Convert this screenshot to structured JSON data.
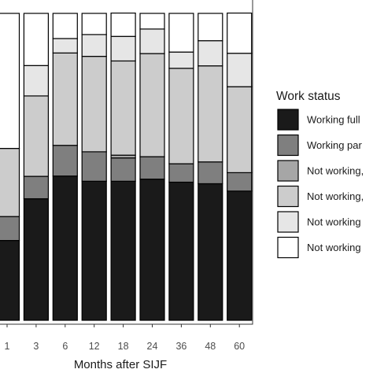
{
  "chart_data": {
    "type": "bar",
    "stacked": true,
    "xlabel": "Months after SIJF",
    "ylabel": "",
    "title": "",
    "ylim": [
      0,
      1
    ],
    "categories": [
      "1",
      "3",
      "6",
      "12",
      "18",
      "24",
      "36",
      "48",
      "60"
    ],
    "legend": {
      "title": "Work status",
      "placement": "right"
    },
    "series": [
      {
        "name": "Working full",
        "color": "#1a1a1a",
        "values": [
          0.26,
          0.396,
          0.47,
          0.453,
          0.453,
          0.46,
          0.45,
          0.445,
          0.421
        ]
      },
      {
        "name": "Working par",
        "color": "#7f7f7f",
        "values": [
          0.078,
          0.073,
          0.1,
          0.096,
          0.076,
          0.073,
          0.06,
          0.071,
          0.06
        ]
      },
      {
        "name": "Not working,",
        "color": "#a6a6a6",
        "values": [
          0.0,
          0.0,
          0.0,
          0.0,
          0.009,
          0.0,
          0.0,
          0.0,
          0.0
        ]
      },
      {
        "name": "Not working,",
        "color": "#cccccc",
        "values": [
          0.222,
          0.262,
          0.301,
          0.311,
          0.307,
          0.336,
          0.311,
          0.313,
          0.28
        ]
      },
      {
        "name": "Not working",
        "color": "#e6e6e6",
        "values": [
          0.0,
          0.099,
          0.047,
          0.071,
          0.08,
          0.08,
          0.053,
          0.082,
          0.109
        ]
      },
      {
        "name": "Not working",
        "color": "#ffffff",
        "values": [
          0.44,
          0.17,
          0.082,
          0.069,
          0.076,
          0.051,
          0.126,
          0.089,
          0.131
        ]
      }
    ]
  }
}
